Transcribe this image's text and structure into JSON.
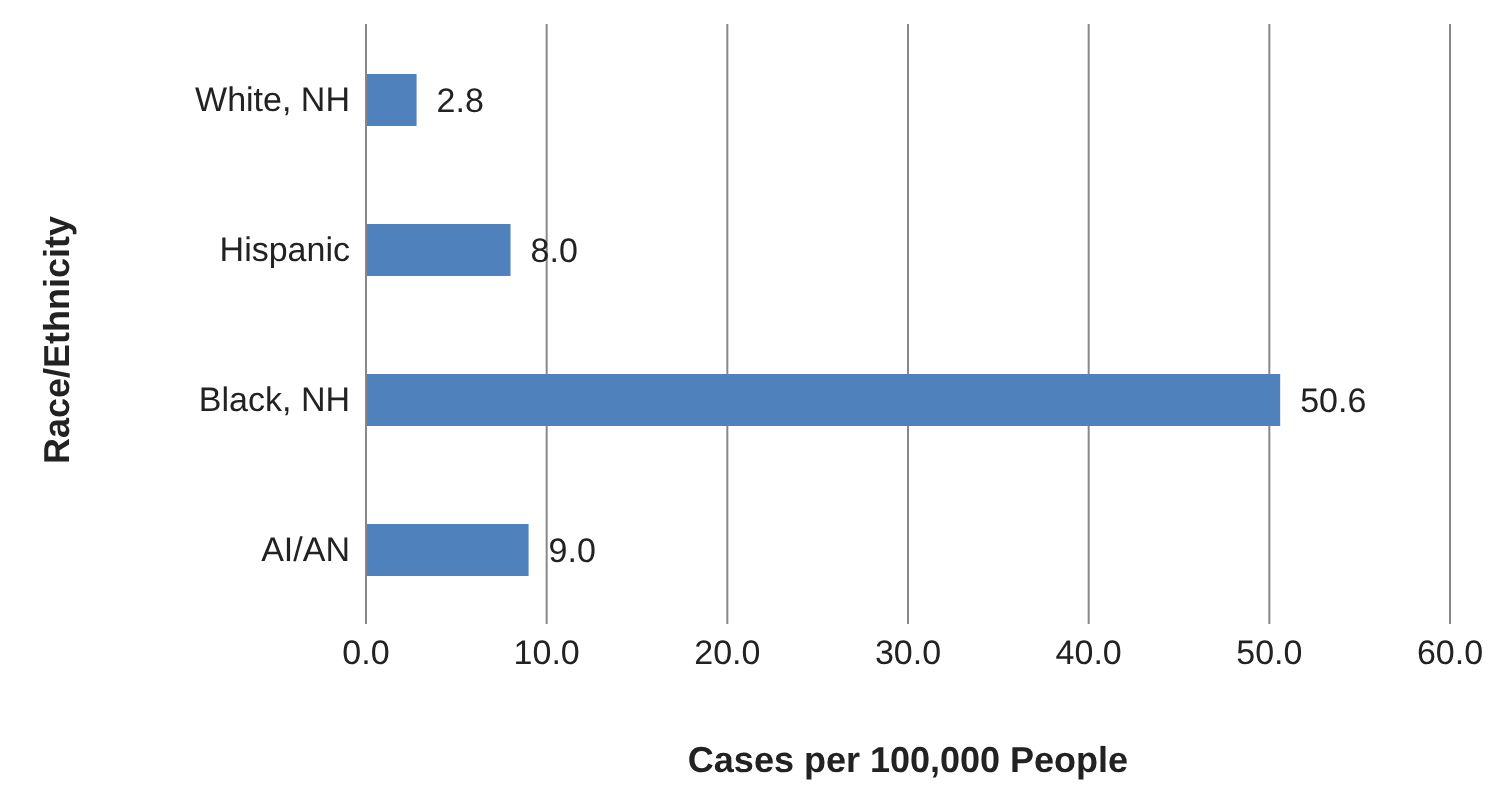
{
  "chart_data": {
    "type": "bar",
    "orientation": "horizontal",
    "xlabel": "Cases per 100,000 People",
    "ylabel": "Race/Ethnicity",
    "categories": [
      "White, NH",
      "Hispanic",
      "Black, NH",
      "AI/AN"
    ],
    "values": [
      2.8,
      8.0,
      50.6,
      9.0
    ],
    "value_labels": [
      "2.8",
      "8.0",
      "50.6",
      "9.0"
    ],
    "color": "#4f81bd",
    "xlim": [
      0,
      60
    ],
    "xticks": [
      {
        "value": 0,
        "label": "0.0"
      },
      {
        "value": 10,
        "label": "10.0"
      },
      {
        "value": 20,
        "label": "20.0"
      },
      {
        "value": 30,
        "label": "30.0"
      },
      {
        "value": 40,
        "label": "40.0"
      },
      {
        "value": 50,
        "label": "50.0"
      },
      {
        "value": 60,
        "label": "60.0"
      }
    ],
    "grid": "x"
  }
}
